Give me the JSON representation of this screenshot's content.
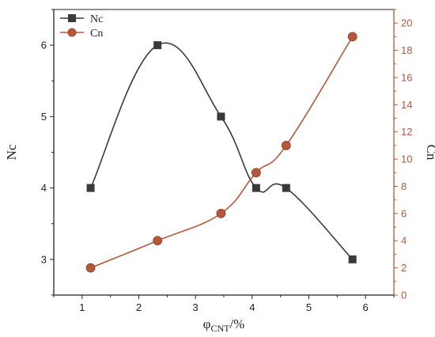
{
  "chart_data": {
    "type": "line",
    "x": [
      1.15,
      2.33,
      3.45,
      4.07,
      4.6,
      5.77
    ],
    "xlabel": "φCNT/%",
    "xlabel_base": "φ",
    "xlabel_sub": "CNT",
    "xlabel_unit": "/%",
    "xlim": [
      0.5,
      6.5
    ],
    "x_ticks": [
      1,
      2,
      3,
      4,
      5,
      6
    ],
    "series": [
      {
        "name": "Nc",
        "axis": "left",
        "marker": "square",
        "color": "#3a3a3a",
        "values": [
          4,
          6,
          5,
          4,
          4,
          3
        ]
      },
      {
        "name": "Cn",
        "axis": "right",
        "marker": "circle",
        "color": "#b3583a",
        "values": [
          2,
          4,
          6,
          9,
          11,
          19
        ]
      }
    ],
    "y_left": {
      "label": "Nc",
      "lim": [
        2.5,
        6.5
      ],
      "ticks": [
        3,
        4,
        5,
        6
      ]
    },
    "y_right": {
      "label": "Cn",
      "lim": [
        0,
        21
      ],
      "ticks": [
        0,
        2,
        4,
        6,
        8,
        10,
        12,
        14,
        16,
        18,
        20
      ]
    },
    "legend_position": "top-left",
    "grid": false
  },
  "colors": {
    "left_axis": "#222222",
    "right_axis": "#b3583a",
    "frame": "#222222"
  }
}
